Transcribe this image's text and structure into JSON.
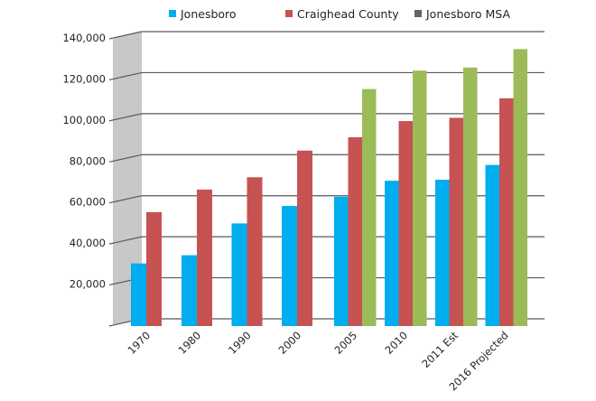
{
  "chart_data": {
    "type": "bar",
    "title": "",
    "xlabel": "",
    "ylabel": "",
    "ylim": [
      0,
      140000
    ],
    "yticks": [
      0,
      20000,
      40000,
      60000,
      80000,
      100000,
      120000,
      140000
    ],
    "ytick_labels": [
      "",
      "20,000",
      "40,000",
      "60,000",
      "80,000",
      "100,000",
      "120,000",
      "140,000"
    ],
    "grid": true,
    "legend_position": "top",
    "categories": [
      "1970",
      "1980",
      "1990",
      "2000",
      "2005",
      "2010",
      "2011 Est",
      "2016 Projected"
    ],
    "series": [
      {
        "name": "Jonesboro",
        "color": "#00adef",
        "legend_color": "#00adef",
        "values": [
          27000,
          31000,
          46500,
          55000,
          59500,
          67300,
          67800,
          75000
        ]
      },
      {
        "name": "Craighead County",
        "color": "#c75252",
        "legend_color": "#c75252",
        "values": [
          52000,
          63000,
          69000,
          82000,
          88500,
          96400,
          98000,
          107500
        ]
      },
      {
        "name": "Jonesboro MSA",
        "color": "#9bbb59",
        "legend_color": "#636466",
        "values": [
          null,
          null,
          null,
          null,
          112000,
          121000,
          122500,
          131500
        ]
      }
    ]
  }
}
